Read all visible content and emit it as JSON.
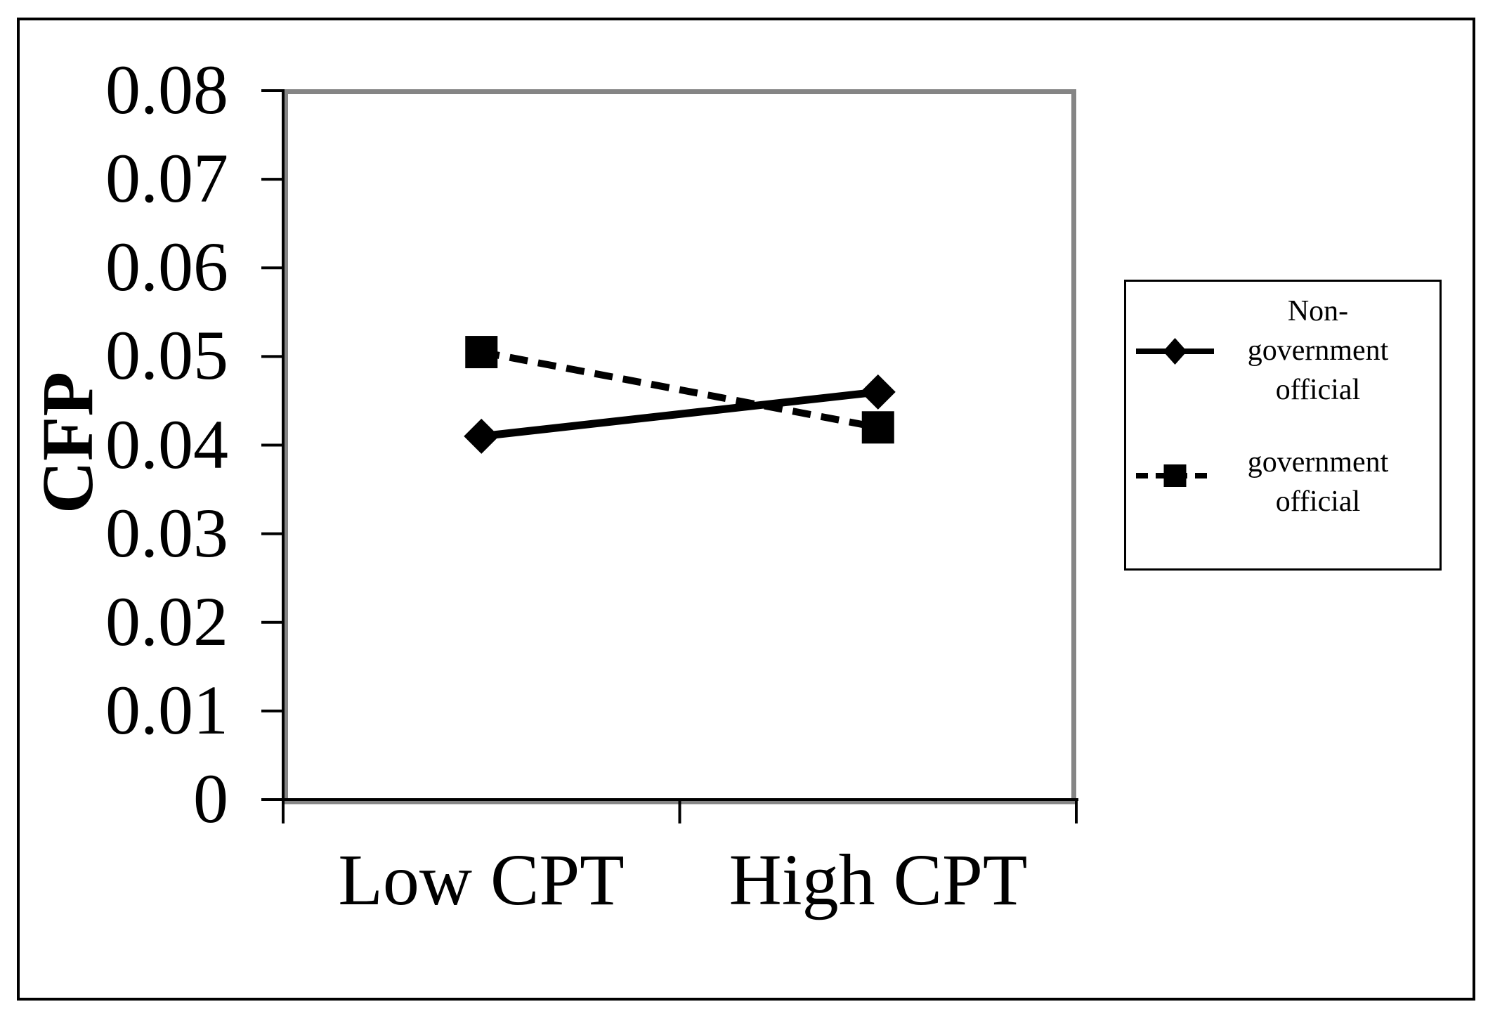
{
  "chart_data": {
    "type": "line",
    "title": "",
    "xlabel": "",
    "ylabel": "CFP",
    "categories": [
      "Low CPT",
      "High CPT"
    ],
    "series": [
      {
        "name": "Non-\ngovernment\nofficial",
        "marker": "diamond",
        "line_style": "solid",
        "values": [
          0.041,
          0.046
        ]
      },
      {
        "name": "government\nofficial",
        "marker": "square",
        "line_style": "dashed",
        "values": [
          0.0505,
          0.042
        ]
      }
    ],
    "ylim": [
      0,
      0.08
    ],
    "yticks": [
      "0",
      "0.01",
      "0.02",
      "0.03",
      "0.04",
      "0.05",
      "0.06",
      "0.07",
      "0.08"
    ],
    "grid": false,
    "legend_position": "right-outside",
    "colors": {
      "series": "#000000",
      "plot_border": "#858585",
      "axis": "#000000",
      "outer_border": "#000000",
      "background": "#ffffff"
    }
  }
}
